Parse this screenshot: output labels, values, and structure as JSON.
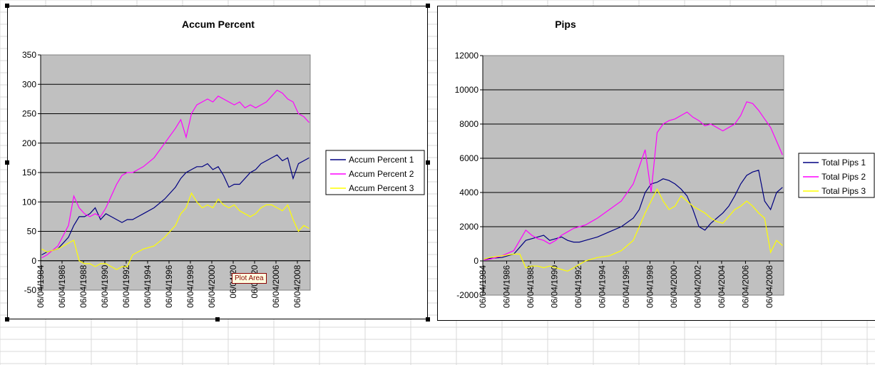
{
  "tooltip": {
    "text": "Plot Area"
  },
  "chart_data": [
    {
      "type": "line",
      "title": "Accum Percent",
      "xlabel": "",
      "ylabel": "",
      "ylim": [
        -50,
        350
      ],
      "yticks": [
        -50,
        0,
        50,
        100,
        150,
        200,
        250,
        300,
        350
      ],
      "x_tick_labels": [
        "06/04/1984",
        "06/04/1986",
        "06/04/1988",
        "06/04/1990",
        "06/04/1992",
        "06/04/1994",
        "06/04/1996",
        "06/04/1998",
        "06/04/2000",
        "06/04/20",
        "06/04/20",
        "06/04/2006",
        "06/04/2008"
      ],
      "x": [
        1984.5,
        1985,
        1986,
        1987,
        1987.5,
        1988,
        1988.5,
        1989,
        1989.5,
        1990,
        1990.5,
        1991,
        1991.5,
        1992,
        1992.5,
        1993,
        1993.5,
        1994,
        1995,
        1996,
        1997,
        1997.5,
        1998,
        1998.5,
        1999,
        1999.5,
        2000,
        2000.5,
        2001,
        2001.5,
        2002,
        2002.5,
        2003,
        2003.5,
        2004,
        2004.5,
        2005,
        2005.5,
        2006,
        2006.5,
        2007,
        2007.5,
        2008,
        2008.5,
        2009,
        2009.5
      ],
      "series": [
        {
          "name": "Accum Percent 1",
          "color": "#000080",
          "values": [
            10,
            15,
            20,
            40,
            60,
            75,
            75,
            80,
            90,
            70,
            80,
            75,
            70,
            65,
            70,
            70,
            75,
            80,
            90,
            105,
            125,
            140,
            150,
            155,
            160,
            160,
            165,
            155,
            160,
            145,
            125,
            130,
            130,
            140,
            150,
            155,
            165,
            170,
            175,
            180,
            170,
            175,
            140,
            165,
            170,
            175
          ]
        },
        {
          "name": "Accum Percent 2",
          "color": "#ff00ff",
          "values": [
            5,
            10,
            25,
            60,
            110,
            90,
            80,
            75,
            80,
            75,
            90,
            110,
            130,
            145,
            150,
            150,
            155,
            160,
            175,
            200,
            225,
            240,
            210,
            250,
            265,
            270,
            275,
            270,
            280,
            275,
            270,
            265,
            270,
            260,
            265,
            260,
            265,
            270,
            280,
            290,
            285,
            275,
            270,
            250,
            245,
            235
          ]
        },
        {
          "name": "Accum Percent 3",
          "color": "#ffff00",
          "values": [
            20,
            15,
            20,
            30,
            35,
            0,
            -5,
            -5,
            -10,
            -5,
            -5,
            -10,
            -15,
            -10,
            -10,
            10,
            15,
            20,
            25,
            40,
            60,
            80,
            90,
            115,
            100,
            90,
            95,
            90,
            105,
            95,
            90,
            95,
            85,
            80,
            75,
            80,
            90,
            95,
            95,
            90,
            85,
            95,
            70,
            50,
            60,
            55
          ]
        }
      ],
      "legend": "right"
    },
    {
      "type": "line",
      "title": "Pips",
      "xlabel": "",
      "ylabel": "",
      "ylim": [
        -2000,
        12000
      ],
      "yticks": [
        -2000,
        0,
        2000,
        4000,
        6000,
        8000,
        10000,
        12000
      ],
      "x_tick_labels": [
        "06/04/1984",
        "06/04/1986",
        "06/04/1988",
        "06/04/1990",
        "06/04/1992",
        "06/04/1994",
        "06/04/1996",
        "06/04/1998",
        "06/04/2000",
        "06/04/2002",
        "06/04/2004",
        "06/04/2006",
        "06/04/2008"
      ],
      "x": [
        1984.5,
        1985,
        1986,
        1987,
        1987.5,
        1988,
        1988.5,
        1989,
        1989.5,
        1990,
        1990.5,
        1991,
        1991.5,
        1992,
        1992.5,
        1993,
        1993.5,
        1994,
        1995,
        1996,
        1997,
        1997.5,
        1998,
        1998.5,
        1999,
        1999.5,
        2000,
        2000.5,
        2001,
        2001.5,
        2002,
        2002.5,
        2003,
        2003.5,
        2004,
        2004.5,
        2005,
        2005.5,
        2006,
        2006.5,
        2007,
        2007.5,
        2008,
        2008.5,
        2009,
        2009.5
      ],
      "series": [
        {
          "name": "Total Pips 1",
          "color": "#000080",
          "values": [
            100,
            150,
            200,
            400,
            800,
            1200,
            1300,
            1400,
            1500,
            1200,
            1300,
            1400,
            1200,
            1100,
            1100,
            1200,
            1300,
            1400,
            1700,
            2000,
            2500,
            3000,
            4000,
            4500,
            4600,
            4800,
            4700,
            4500,
            4200,
            3800,
            3000,
            2000,
            1800,
            2200,
            2500,
            2800,
            3200,
            3800,
            4500,
            5000,
            5200,
            5300,
            3500,
            3000,
            4000,
            4300
          ]
        },
        {
          "name": "Total Pips 2",
          "color": "#ff00ff",
          "values": [
            50,
            100,
            300,
            600,
            1200,
            1800,
            1500,
            1300,
            1200,
            1000,
            1200,
            1500,
            1700,
            1900,
            2000,
            2100,
            2300,
            2500,
            3000,
            3500,
            4500,
            5500,
            6500,
            4000,
            7500,
            8000,
            8200,
            8300,
            8500,
            8700,
            8400,
            8200,
            7900,
            8000,
            7800,
            7600,
            7800,
            8000,
            8500,
            9300,
            9200,
            8800,
            8300,
            7800,
            7000,
            6200
          ]
        },
        {
          "name": "Total Pips 3",
          "color": "#ffff00",
          "values": [
            100,
            200,
            300,
            400,
            400,
            -400,
            -300,
            -300,
            -400,
            -300,
            -400,
            -500,
            -600,
            -400,
            -200,
            0,
            100,
            200,
            300,
            600,
            1200,
            2000,
            2800,
            3500,
            4200,
            3500,
            3000,
            3200,
            3800,
            3500,
            3200,
            3000,
            2800,
            2500,
            2300,
            2200,
            2600,
            3000,
            3200,
            3500,
            3200,
            2800,
            2500,
            500,
            1200,
            900
          ]
        }
      ],
      "legend": "right"
    }
  ]
}
